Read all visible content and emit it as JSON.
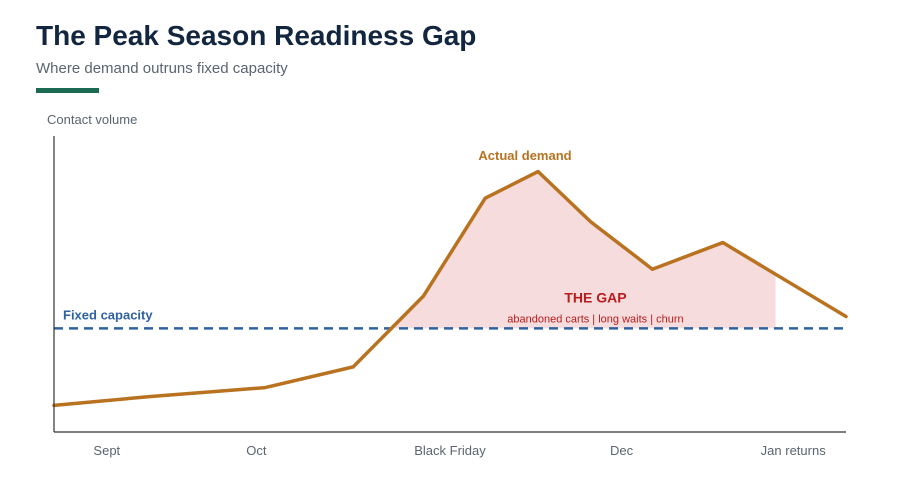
{
  "header": {
    "title": "The Peak Season Readiness Gap",
    "subtitle": "Where demand outruns fixed capacity"
  },
  "colors": {
    "accent": "#1a6b52",
    "demand": "#b87220",
    "capacity": "#2f63a0",
    "gap_fill": "#f6dcdd",
    "gap_text": "#b81c1c",
    "axis": "#333333"
  },
  "chart_data": {
    "type": "line",
    "ylabel": "Contact volume",
    "xlabel": "",
    "ylim": [
      0,
      100
    ],
    "x_ticks": [
      {
        "label": "Sept",
        "x": 0.5
      },
      {
        "label": "Oct",
        "x": 2.2
      },
      {
        "label": "Black Friday",
        "x": 4.4
      },
      {
        "label": "Dec",
        "x": 6.35
      },
      {
        "label": "Jan returns",
        "x": 8.3
      }
    ],
    "xlim": [
      -0.1,
      8.9
    ],
    "series": [
      {
        "name": "Actual demand",
        "x": [
          -0.1,
          1.0,
          2.3,
          3.3,
          4.1,
          4.8,
          5.4,
          6.0,
          6.7,
          7.5,
          8.9
        ],
        "values": [
          9,
          12,
          15,
          22,
          46,
          79,
          88,
          71,
          55,
          64,
          39
        ]
      },
      {
        "name": "Fixed capacity",
        "x": [
          -0.1,
          8.9
        ],
        "values": [
          35,
          35
        ]
      }
    ],
    "gap_region": {
      "x_end": 8.1,
      "label": "THE GAP",
      "sublabel": "abandoned carts | long waits | churn"
    }
  }
}
